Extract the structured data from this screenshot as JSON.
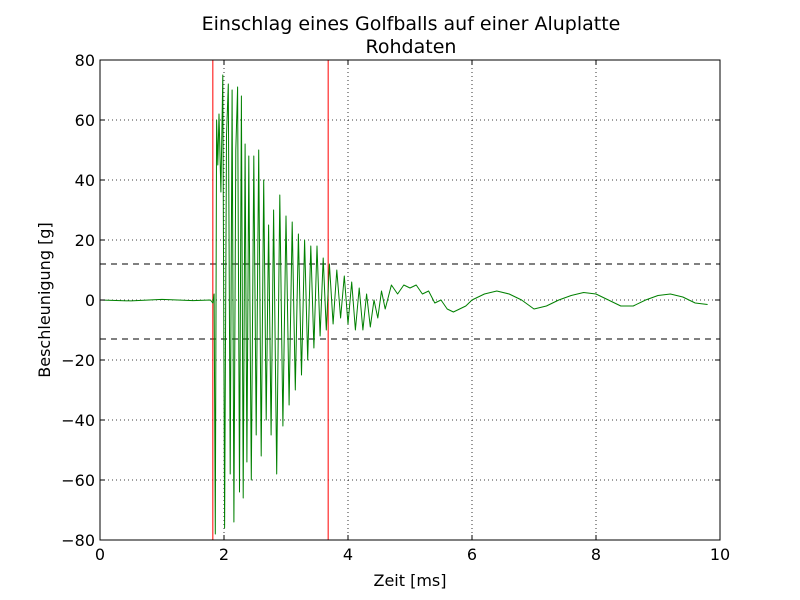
{
  "chart_data": {
    "type": "line",
    "title": "Einschlag eines Golfballs auf einer Aluplatte",
    "subtitle": "Rohdaten",
    "xlabel": "Zeit [ms]",
    "ylabel": "Beschleunigung [g]",
    "xlim": [
      0,
      10
    ],
    "ylim": [
      -80,
      80
    ],
    "xticks": [
      0,
      2,
      4,
      6,
      8,
      10
    ],
    "yticks": [
      -80,
      -60,
      -40,
      -20,
      0,
      20,
      40,
      60,
      80
    ],
    "xtick_labels": [
      "0",
      "2",
      "4",
      "6",
      "8",
      "10"
    ],
    "ytick_labels": [
      "−80",
      "−60",
      "−40",
      "−20",
      "0",
      "20",
      "40",
      "60",
      "80"
    ],
    "grid": true,
    "series": [
      {
        "color": "#008000",
        "x": [
          0,
          0.5,
          1.0,
          1.5,
          1.78,
          1.82,
          1.84,
          1.86,
          1.88,
          1.9,
          1.92,
          1.95,
          1.98,
          2.01,
          2.04,
          2.07,
          2.1,
          2.13,
          2.16,
          2.19,
          2.22,
          2.25,
          2.28,
          2.31,
          2.34,
          2.37,
          2.4,
          2.44,
          2.48,
          2.52,
          2.56,
          2.6,
          2.64,
          2.68,
          2.72,
          2.76,
          2.8,
          2.85,
          2.9,
          2.95,
          3.0,
          3.05,
          3.1,
          3.15,
          3.2,
          3.25,
          3.3,
          3.35,
          3.4,
          3.45,
          3.5,
          3.55,
          3.6,
          3.65,
          3.7,
          3.76,
          3.82,
          3.88,
          3.94,
          4.0,
          4.06,
          4.12,
          4.18,
          4.24,
          4.3,
          4.36,
          4.42,
          4.48,
          4.54,
          4.6,
          4.7,
          4.8,
          4.9,
          5.0,
          5.1,
          5.2,
          5.3,
          5.4,
          5.5,
          5.6,
          5.7,
          5.8,
          5.9,
          6.0,
          6.2,
          6.4,
          6.6,
          6.8,
          7.0,
          7.2,
          7.4,
          7.6,
          7.8,
          8.0,
          8.2,
          8.4,
          8.6,
          8.8,
          9.0,
          9.2,
          9.4,
          9.6,
          9.8
        ],
        "y": [
          0,
          -0.3,
          0.2,
          -0.2,
          0,
          -1,
          2,
          -78,
          60,
          45,
          62,
          36,
          75,
          -76,
          55,
          72,
          -58,
          70,
          -74,
          50,
          71,
          -64,
          68,
          -66,
          52,
          -54,
          48,
          -60,
          48,
          -45,
          50,
          -52,
          40,
          -40,
          25,
          -45,
          30,
          -58,
          35,
          -42,
          28,
          -35,
          26,
          -30,
          22,
          -25,
          20,
          -20,
          18,
          -16,
          18,
          -12,
          14,
          -10,
          12,
          -8,
          10,
          -6,
          8,
          -8,
          6,
          -10,
          4,
          -10,
          2,
          -9,
          0,
          -6,
          3,
          -3,
          5,
          2,
          5,
          4,
          5,
          2,
          3,
          -1,
          0,
          -3,
          -4,
          -3,
          -2,
          0,
          2,
          3,
          2,
          0,
          -3,
          -2,
          0,
          1.5,
          2.5,
          2,
          0,
          -2,
          -2,
          0,
          1.5,
          2,
          1,
          -1,
          -1.5
        ]
      }
    ],
    "vertical_lines": [
      {
        "x": 1.82,
        "color": "#ff0000"
      },
      {
        "x": 3.68,
        "color": "#ff0000"
      }
    ],
    "horizontal_lines": [
      {
        "y": 12,
        "color": "#000000",
        "style": "dashed"
      },
      {
        "y": -13,
        "color": "#000000",
        "style": "dashed"
      }
    ]
  }
}
